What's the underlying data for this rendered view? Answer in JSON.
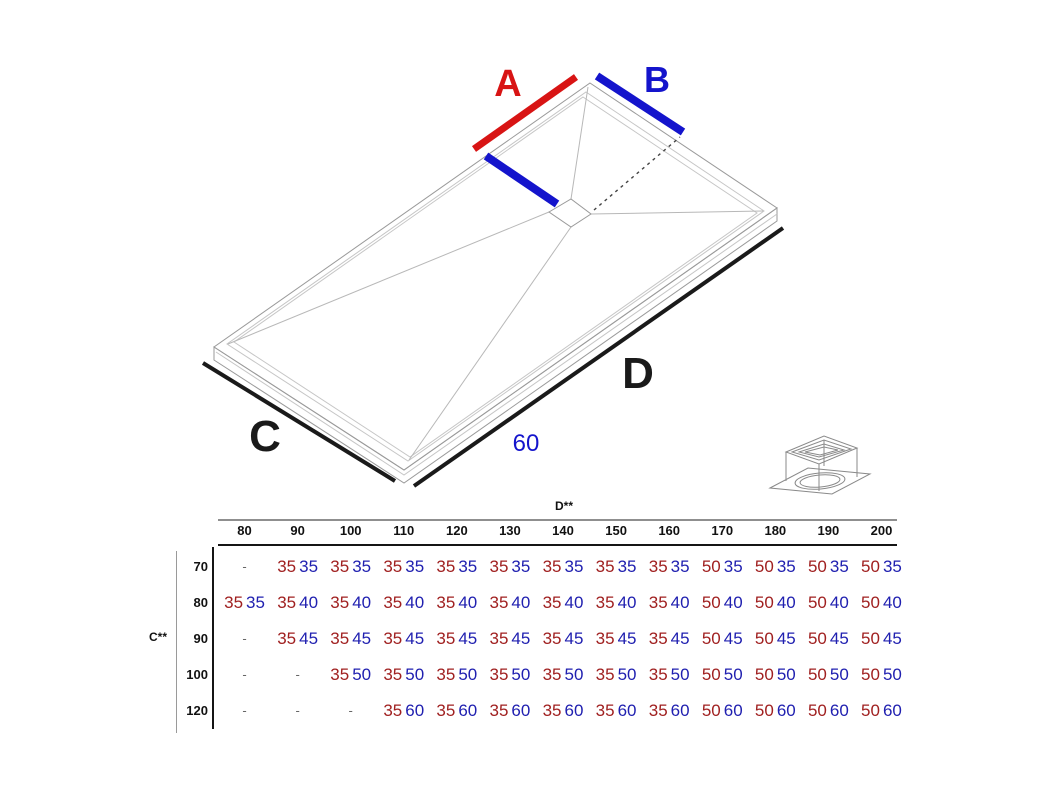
{
  "diagram": {
    "label_a": "A",
    "label_b": "B",
    "label_c": "C",
    "label_d": "D",
    "drain_offset": "60",
    "colors": {
      "red": "#d81414",
      "blue": "#1414cc",
      "black": "#1a1a1a",
      "sketch": "#9a9a9a"
    }
  },
  "chart_data": {
    "type": "table",
    "col_axis_label": "D**",
    "row_axis_label": "C**",
    "columns": [
      "80",
      "90",
      "100",
      "110",
      "120",
      "130",
      "140",
      "150",
      "160",
      "170",
      "180",
      "190",
      "200"
    ],
    "rows": [
      {
        "label": "70",
        "cells": [
          null,
          [
            35,
            35
          ],
          [
            35,
            35
          ],
          [
            35,
            35
          ],
          [
            35,
            35
          ],
          [
            35,
            35
          ],
          [
            35,
            35
          ],
          [
            35,
            35
          ],
          [
            35,
            35
          ],
          [
            50,
            35
          ],
          [
            50,
            35
          ],
          [
            50,
            35
          ],
          [
            50,
            35
          ]
        ]
      },
      {
        "label": "80",
        "cells": [
          [
            35,
            35
          ],
          [
            35,
            40
          ],
          [
            35,
            40
          ],
          [
            35,
            40
          ],
          [
            35,
            40
          ],
          [
            35,
            40
          ],
          [
            35,
            40
          ],
          [
            35,
            40
          ],
          [
            35,
            40
          ],
          [
            50,
            40
          ],
          [
            50,
            40
          ],
          [
            50,
            40
          ],
          [
            50,
            40
          ]
        ]
      },
      {
        "label": "90",
        "cells": [
          null,
          [
            35,
            45
          ],
          [
            35,
            45
          ],
          [
            35,
            45
          ],
          [
            35,
            45
          ],
          [
            35,
            45
          ],
          [
            35,
            45
          ],
          [
            35,
            45
          ],
          [
            35,
            45
          ],
          [
            50,
            45
          ],
          [
            50,
            45
          ],
          [
            50,
            45
          ],
          [
            50,
            45
          ]
        ]
      },
      {
        "label": "100",
        "cells": [
          null,
          null,
          [
            35,
            50
          ],
          [
            35,
            50
          ],
          [
            35,
            50
          ],
          [
            35,
            50
          ],
          [
            35,
            50
          ],
          [
            35,
            50
          ],
          [
            35,
            50
          ],
          [
            50,
            50
          ],
          [
            50,
            50
          ],
          [
            50,
            50
          ],
          [
            50,
            50
          ]
        ]
      },
      {
        "label": "120",
        "cells": [
          null,
          null,
          null,
          [
            35,
            60
          ],
          [
            35,
            60
          ],
          [
            35,
            60
          ],
          [
            35,
            60
          ],
          [
            35,
            60
          ],
          [
            35,
            60
          ],
          [
            50,
            60
          ],
          [
            50,
            60
          ],
          [
            50,
            60
          ],
          [
            50,
            60
          ]
        ]
      }
    ],
    "empty_marker": "-",
    "value_colors": {
      "first": "#a02020",
      "second": "#2020b0"
    }
  }
}
